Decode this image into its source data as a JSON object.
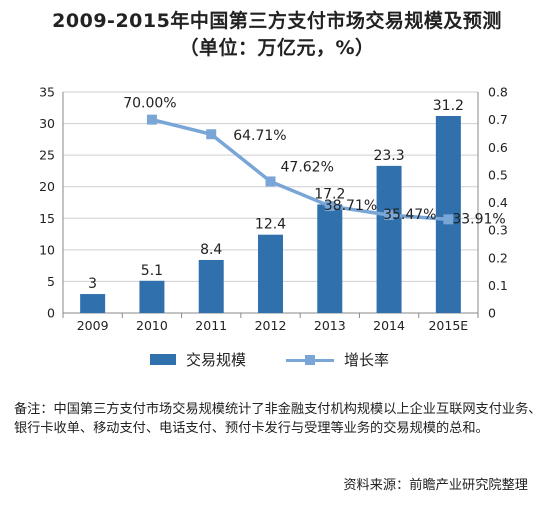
{
  "title_line1": "2009-2015年中国第三方支付市场交易规模及预测",
  "title_line2": "（单位：万亿元，%）",
  "legend": {
    "bar_label": "交易规模",
    "line_label": "增长率"
  },
  "note": "备注：中国第三方支付市场交易规模统计了非金融支付机构规模以上企业互联网支付业务、银行卡收单、移动支付、电话支付、预付卡发行与受理等业务的交易规模的总和。",
  "source": "资料来源：前瞻产业研究院整理",
  "colors": {
    "bar": "#3070ad",
    "line": "#79a6d6",
    "grid": "#cfcfcf"
  },
  "chart_data": {
    "type": "bar",
    "categories": [
      "2009",
      "2010",
      "2011",
      "2012",
      "2013",
      "2014",
      "2015E"
    ],
    "series": [
      {
        "name": "交易规模",
        "type": "bar",
        "axis": "left",
        "values": [
          3,
          5.1,
          8.4,
          12.4,
          17.2,
          23.3,
          31.2
        ],
        "labels": [
          "3",
          "5.1",
          "8.4",
          "12.4",
          "17.2",
          "23.3",
          "31.2"
        ]
      },
      {
        "name": "增长率",
        "type": "line",
        "axis": "right",
        "values": [
          null,
          0.7,
          0.6471,
          0.4762,
          0.3871,
          0.3547,
          0.3391
        ],
        "labels": [
          null,
          "70.00%",
          "64.71%",
          "47.62%",
          "38.71%",
          "35.47%",
          "33.91%"
        ]
      }
    ],
    "ylim": [
      0,
      35
    ],
    "y_ticks": [
      "0",
      "5",
      "10",
      "15",
      "20",
      "25",
      "30",
      "35"
    ],
    "y2lim": [
      0,
      0.8
    ],
    "y2_ticks": [
      "0",
      "0.1",
      "0.2",
      "0.3",
      "0.4",
      "0.5",
      "0.6",
      "0.7",
      "0.8"
    ],
    "grid": true,
    "legend_position": "bottom"
  }
}
